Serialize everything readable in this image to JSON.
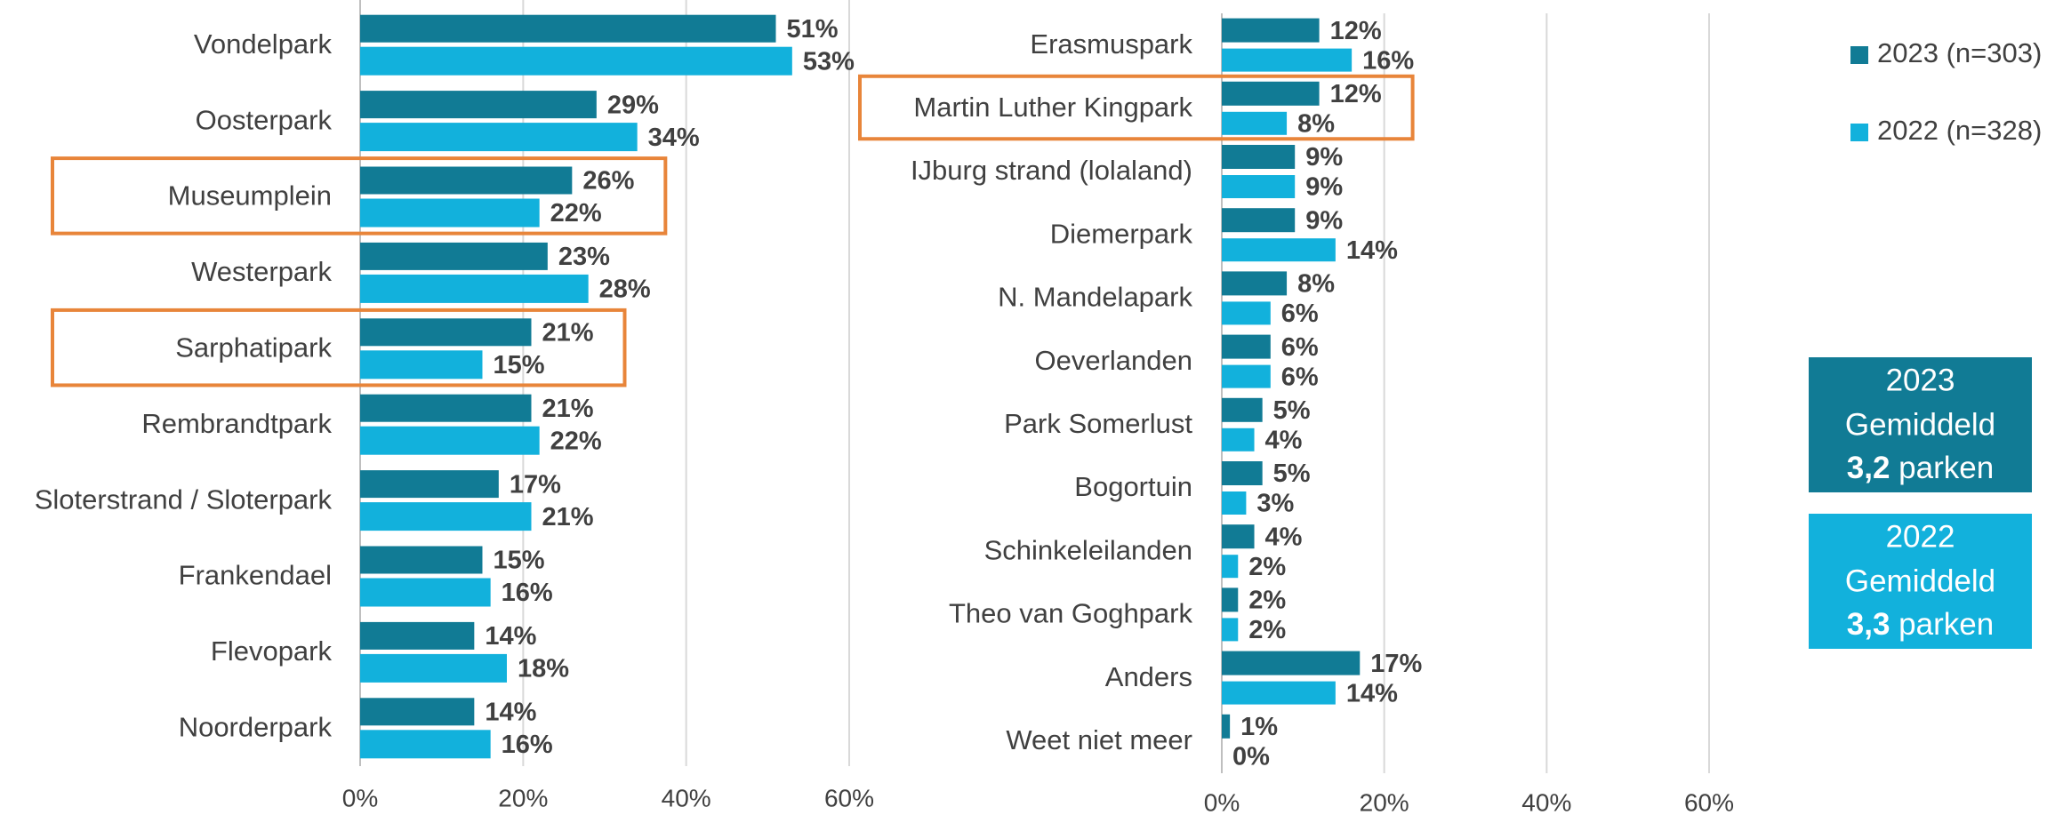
{
  "chart_data": [
    {
      "type": "bar",
      "orientation": "horizontal",
      "categories": [
        "Vondelpark",
        "Oosterpark",
        "Museumplein",
        "Westerpark",
        "Sarphatipark",
        "Rembrandtpark",
        "Sloterstrand / Sloterpark",
        "Frankendael",
        "Flevopark",
        "Noorderpark"
      ],
      "series": [
        {
          "name": "2023 (n=303)",
          "color": "#117b95",
          "values": [
            51,
            29,
            26,
            23,
            21,
            21,
            17,
            15,
            14,
            14
          ],
          "value_labels": [
            "51%",
            "29%",
            "26%",
            "23%",
            "21%",
            "21%",
            "17%",
            "15%",
            "14%",
            "14%"
          ]
        },
        {
          "name": "2022 (n=328)",
          "color": "#12b1dc",
          "values": [
            53,
            34,
            22,
            28,
            15,
            22,
            21,
            16,
            18,
            16
          ],
          "value_labels": [
            "53%",
            "34%",
            "22%",
            "28%",
            "15%",
            "22%",
            "21%",
            "16%",
            "18%",
            "16%"
          ]
        }
      ],
      "xlim": [
        0,
        60
      ],
      "xticks": [
        {
          "value": 0,
          "label": "0%"
        },
        {
          "value": 20,
          "label": "20%"
        },
        {
          "value": 40,
          "label": "40%"
        },
        {
          "value": 60,
          "label": "60%"
        }
      ],
      "grid": true,
      "highlight": [
        2,
        4
      ],
      "highlight_color": "#e8853a",
      "legend": "right"
    },
    {
      "type": "bar",
      "orientation": "horizontal",
      "categories": [
        "Erasmuspark",
        "Martin Luther Kingpark",
        "IJburg strand (lolaland)",
        "Diemerpark",
        "N. Mandelapark",
        "Oeverlanden",
        "Park Somerlust",
        "Bogortuin",
        "Schinkeleilanden",
        "Theo van Goghpark",
        "Anders",
        "Weet niet meer"
      ],
      "series": [
        {
          "color": "#117b95",
          "values": [
            12,
            12,
            9,
            9,
            8,
            6,
            5,
            5,
            4,
            2,
            17,
            1
          ],
          "value_labels": [
            "12%",
            "12%",
            "9%",
            "9%",
            "8%",
            "6%",
            "5%",
            "5%",
            "4%",
            "2%",
            "17%",
            "1%"
          ]
        },
        {
          "color": "#12b1dc",
          "values": [
            16,
            8,
            9,
            14,
            6,
            6,
            4,
            3,
            2,
            2,
            14,
            0
          ],
          "value_labels": [
            "16%",
            "8%",
            "9%",
            "14%",
            "6%",
            "6%",
            "4%",
            "3%",
            "2%",
            "2%",
            "14%",
            "0%"
          ]
        }
      ],
      "xlim": [
        0,
        60
      ],
      "xticks": [
        {
          "value": 0,
          "label": "0%"
        },
        {
          "value": 20,
          "label": "20%"
        },
        {
          "value": 40,
          "label": "40%"
        },
        {
          "value": 60,
          "label": "60%"
        }
      ],
      "grid": true,
      "highlight": [
        1
      ],
      "highlight_color": "#e8853a"
    }
  ],
  "boxes": [
    {
      "year": "2023",
      "label": "Gemiddeld",
      "value": "3,2",
      "unit": "parken",
      "color": "#117b95"
    },
    {
      "year": "2022",
      "label": "Gemiddeld",
      "value": "3,3",
      "unit": "parken",
      "color": "#12b1dc"
    }
  ]
}
